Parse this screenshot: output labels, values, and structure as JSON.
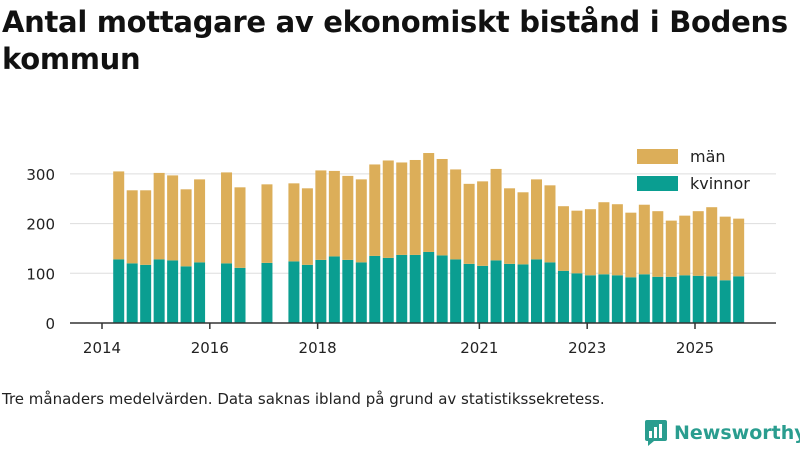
{
  "title": "Antal mottagare av ekonomiskt bistånd i Bodens kommun",
  "note": "Tre månaders medelvärden. Data saknas ibland på grund av statistikssekretess.",
  "brand": "Newsworthy",
  "colors": {
    "man": "#dcae59",
    "kvinnor": "#0a9e91",
    "grid": "#dddddd",
    "axis": "#333333"
  },
  "chart_data": {
    "type": "bar",
    "stacked": true,
    "title": "Antal mottagare av ekonomiskt bistånd i Bodens kommun",
    "xlabel": "",
    "ylabel": "",
    "ylim": [
      0,
      360
    ],
    "xlim": [
      2014.0,
      2026.0
    ],
    "yticks": [
      0,
      100,
      200,
      300
    ],
    "xticks": [
      {
        "value": 2014.0,
        "label": "2014"
      },
      {
        "value": 2016.0,
        "label": "2016"
      },
      {
        "value": 2018.0,
        "label": "2018"
      },
      {
        "value": 2021.0,
        "label": "2021"
      },
      {
        "value": 2023.0,
        "label": "2023"
      },
      {
        "value": 2025.0,
        "label": "2025"
      }
    ],
    "legend": {
      "position": "top-right",
      "order": [
        "män",
        "kvinnor"
      ]
    },
    "series": [
      {
        "name": "kvinnor",
        "color": "#0a9e91",
        "values": [
          128,
          120,
          117,
          128,
          126,
          114,
          122,
          120,
          111,
          121,
          124,
          117,
          127,
          134,
          127,
          122,
          135,
          131,
          137,
          137,
          143,
          136,
          128,
          119,
          115,
          126,
          119,
          118,
          128,
          122,
          105,
          100,
          96,
          98,
          96,
          92,
          98,
          93,
          93,
          96,
          95,
          94,
          86,
          94
        ]
      },
      {
        "name": "män",
        "color": "#dcae59",
        "values": [
          177,
          147,
          150,
          174,
          171,
          155,
          167,
          183,
          162,
          158,
          157,
          154,
          180,
          172,
          169,
          167,
          184,
          196,
          186,
          191,
          199,
          194,
          181,
          161,
          170,
          184,
          152,
          145,
          161,
          155,
          130,
          126,
          133,
          145,
          143,
          130,
          140,
          132,
          113,
          120,
          130,
          139,
          128,
          116
        ]
      }
    ],
    "x": [
      2014.31,
      2014.56,
      2014.81,
      2015.06,
      2015.31,
      2015.56,
      2015.81,
      2016.31,
      2016.56,
      2017.06,
      2017.56,
      2017.81,
      2018.06,
      2018.31,
      2018.56,
      2018.81,
      2019.06,
      2019.31,
      2019.56,
      2019.81,
      2020.06,
      2020.31,
      2020.56,
      2020.81,
      2021.06,
      2021.31,
      2021.56,
      2021.81,
      2022.06,
      2022.31,
      2022.56,
      2022.81,
      2023.06,
      2023.31,
      2023.56,
      2023.81,
      2024.06,
      2024.31,
      2024.56,
      2024.81,
      2025.06,
      2025.31,
      2025.56,
      2025.81
    ]
  }
}
